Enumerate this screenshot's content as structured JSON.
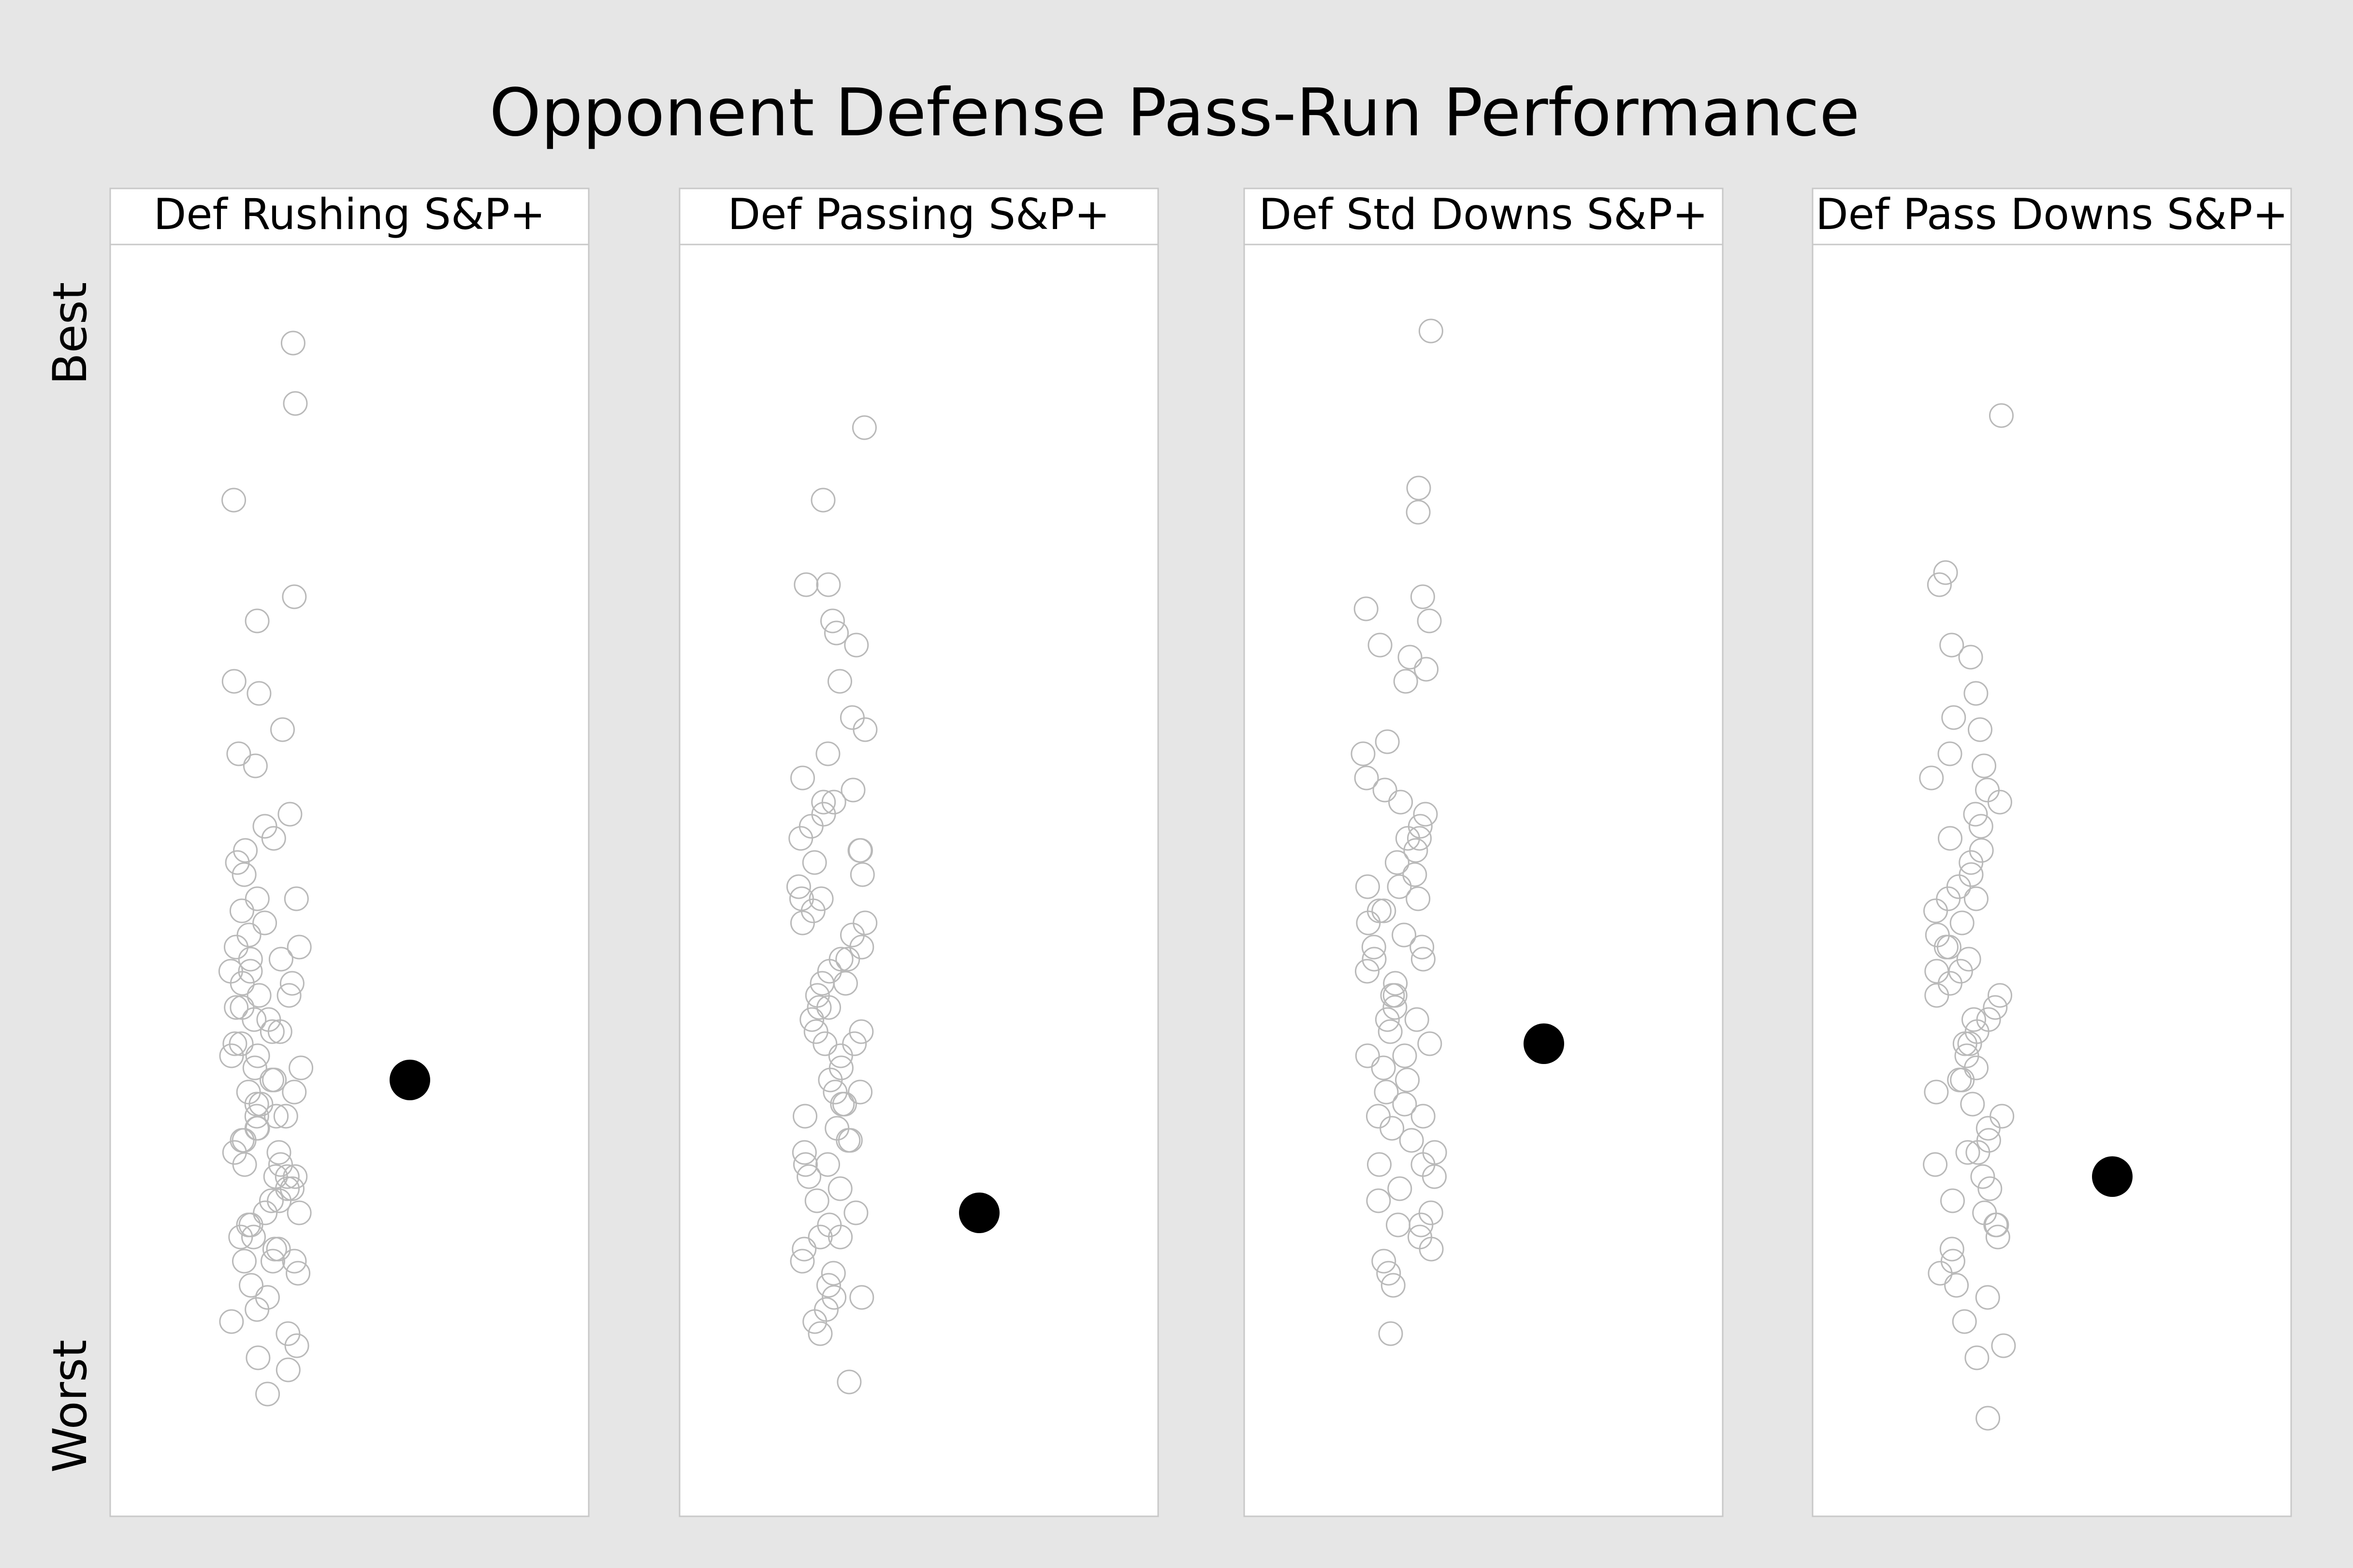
{
  "chart_data": {
    "type": "scatter",
    "title": "Opponent Defense Pass-Run Performance",
    "ylabel_top": "Best",
    "ylabel_bottom": "Worst",
    "ylim": [
      0,
      1
    ],
    "panels": [
      {
        "label": "Def Rushing S&P+",
        "highlight": 0.33,
        "values": [
          0.94,
          0.89,
          0.81,
          0.71,
          0.73,
          0.6,
          0.59,
          0.54,
          0.53,
          0.52,
          0.51,
          0.48,
          0.48,
          0.47,
          0.46,
          0.45,
          0.44,
          0.43,
          0.43,
          0.42,
          0.42,
          0.41,
          0.41,
          0.4,
          0.4,
          0.39,
          0.38,
          0.38,
          0.37,
          0.37,
          0.36,
          0.36,
          0.35,
          0.35,
          0.34,
          0.34,
          0.33,
          0.33,
          0.32,
          0.32,
          0.31,
          0.31,
          0.3,
          0.3,
          0.29,
          0.29,
          0.28,
          0.28,
          0.27,
          0.27,
          0.26,
          0.26,
          0.25,
          0.25,
          0.24,
          0.24,
          0.23,
          0.23,
          0.22,
          0.22,
          0.21,
          0.21,
          0.2,
          0.2,
          0.19,
          0.19,
          0.18,
          0.18,
          0.17,
          0.16,
          0.15,
          0.14,
          0.13,
          0.11,
          0.1,
          0.09,
          0.07,
          0.65,
          0.66,
          0.62,
          0.55,
          0.5,
          0.44,
          0.39,
          0.3,
          0.25,
          0.18,
          0.12
        ]
      },
      {
        "label": "Def Passing S&P+",
        "highlight": 0.22,
        "values": [
          0.87,
          0.81,
          0.74,
          0.74,
          0.71,
          0.7,
          0.69,
          0.66,
          0.63,
          0.6,
          0.58,
          0.56,
          0.56,
          0.55,
          0.54,
          0.53,
          0.52,
          0.51,
          0.5,
          0.49,
          0.48,
          0.48,
          0.47,
          0.46,
          0.45,
          0.44,
          0.43,
          0.43,
          0.42,
          0.41,
          0.4,
          0.39,
          0.39,
          0.38,
          0.37,
          0.36,
          0.36,
          0.35,
          0.34,
          0.33,
          0.32,
          0.32,
          0.31,
          0.3,
          0.29,
          0.28,
          0.28,
          0.27,
          0.26,
          0.25,
          0.24,
          0.23,
          0.22,
          0.21,
          0.2,
          0.19,
          0.18,
          0.17,
          0.16,
          0.15,
          0.14,
          0.13,
          0.12,
          0.08,
          0.62,
          0.57,
          0.52,
          0.46,
          0.41,
          0.37,
          0.31,
          0.26,
          0.2,
          0.15
        ]
      },
      {
        "label": "Def Std Downs S&P+",
        "highlight": 0.36,
        "values": [
          0.95,
          0.82,
          0.8,
          0.73,
          0.72,
          0.71,
          0.69,
          0.68,
          0.67,
          0.66,
          0.6,
          0.58,
          0.57,
          0.56,
          0.55,
          0.54,
          0.53,
          0.52,
          0.51,
          0.5,
          0.49,
          0.48,
          0.47,
          0.47,
          0.46,
          0.45,
          0.44,
          0.43,
          0.43,
          0.42,
          0.41,
          0.4,
          0.39,
          0.38,
          0.38,
          0.37,
          0.36,
          0.35,
          0.34,
          0.33,
          0.32,
          0.31,
          0.3,
          0.29,
          0.28,
          0.27,
          0.26,
          0.25,
          0.24,
          0.23,
          0.22,
          0.21,
          0.2,
          0.19,
          0.18,
          0.17,
          0.16,
          0.12,
          0.61,
          0.53,
          0.49,
          0.44,
          0.4,
          0.35,
          0.3,
          0.26,
          0.21
        ]
      },
      {
        "label": "Def Pass Downs S&P+",
        "highlight": 0.25,
        "values": [
          0.88,
          0.75,
          0.74,
          0.68,
          0.65,
          0.63,
          0.62,
          0.59,
          0.58,
          0.57,
          0.56,
          0.55,
          0.53,
          0.52,
          0.51,
          0.5,
          0.49,
          0.48,
          0.47,
          0.46,
          0.45,
          0.44,
          0.44,
          0.43,
          0.42,
          0.41,
          0.4,
          0.4,
          0.39,
          0.38,
          0.37,
          0.36,
          0.36,
          0.35,
          0.34,
          0.33,
          0.32,
          0.31,
          0.3,
          0.29,
          0.28,
          0.27,
          0.26,
          0.25,
          0.24,
          0.23,
          0.22,
          0.21,
          0.2,
          0.19,
          0.18,
          0.16,
          0.15,
          0.13,
          0.11,
          0.1,
          0.05,
          0.69,
          0.6,
          0.54,
          0.48,
          0.42,
          0.38,
          0.33,
          0.27,
          0.21,
          0.17
        ]
      }
    ]
  }
}
